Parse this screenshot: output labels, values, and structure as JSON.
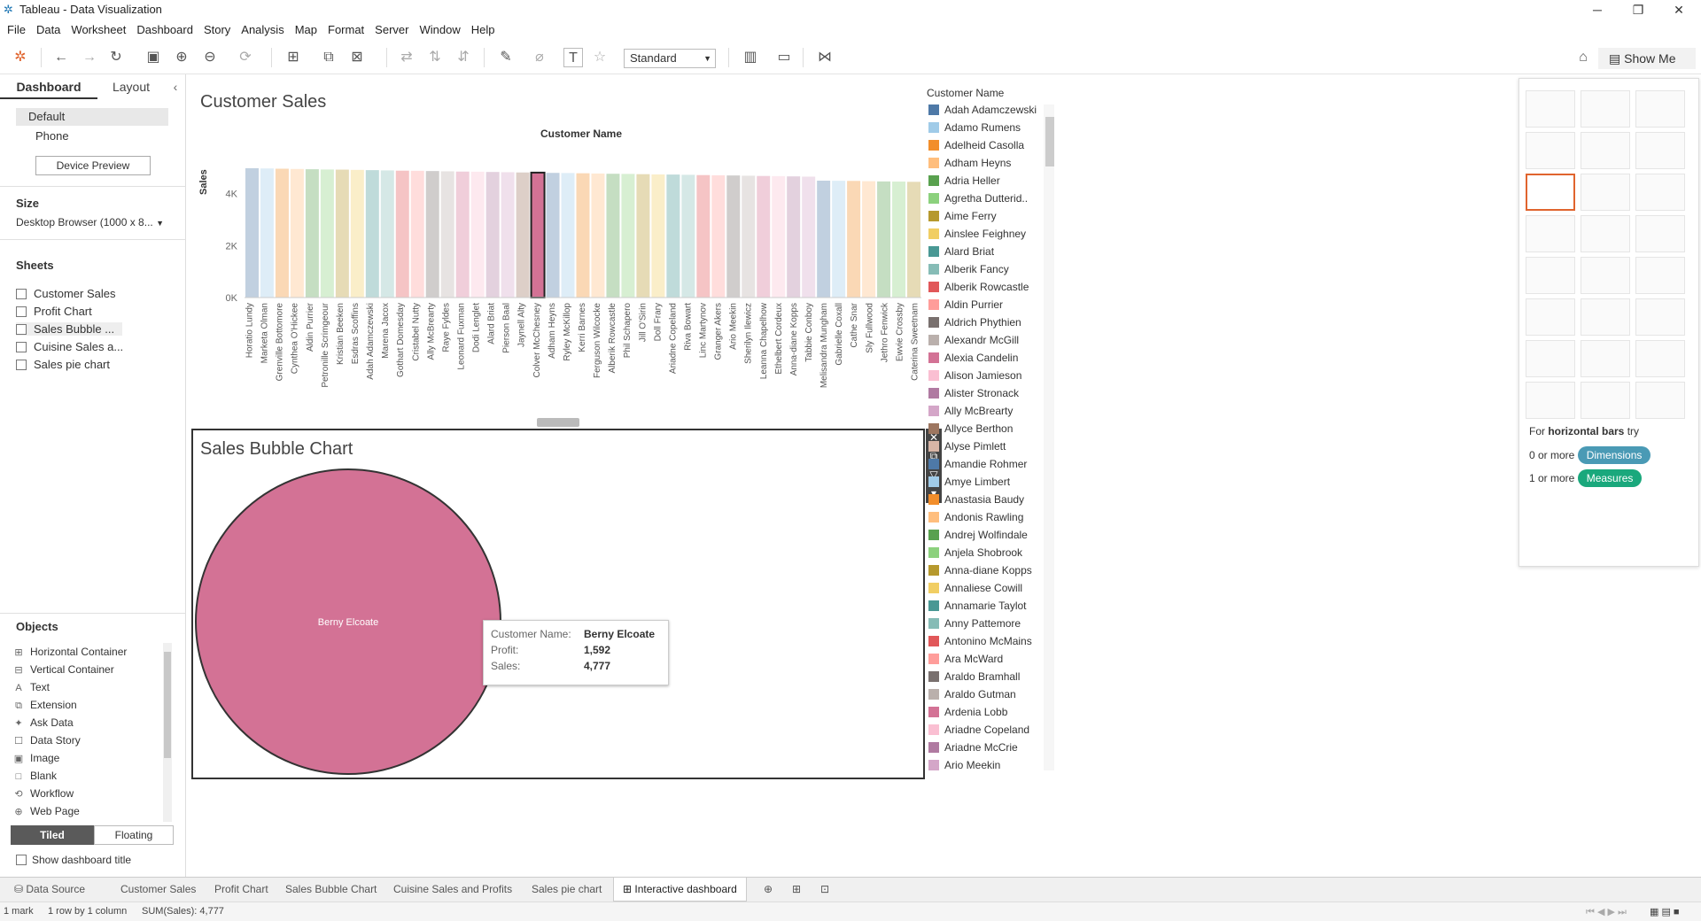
{
  "window": {
    "title": "Tableau - Data Visualization",
    "controls": [
      "─",
      "❐",
      "✕"
    ]
  },
  "menu": [
    "File",
    "Data",
    "Worksheet",
    "Dashboard",
    "Story",
    "Analysis",
    "Map",
    "Format",
    "Server",
    "Window",
    "Help"
  ],
  "toolbar": {
    "fit": "Standard",
    "show_me": "Show Me"
  },
  "left": {
    "tabs": {
      "dashboard": "Dashboard",
      "layout": "Layout"
    },
    "devices": [
      "Default",
      "Phone"
    ],
    "device_preview": "Device Preview",
    "size_title": "Size",
    "size_value": "Desktop Browser (1000 x 8...",
    "sheets_title": "Sheets",
    "sheets": [
      "Customer Sales",
      "Profit Chart",
      "Sales Bubble ...",
      "Cuisine Sales a...",
      "Sales pie chart"
    ],
    "objects_title": "Objects",
    "objects": [
      {
        "icon": "⊞",
        "label": "Horizontal Container"
      },
      {
        "icon": "⊟",
        "label": "Vertical Container"
      },
      {
        "icon": "A",
        "label": "Text"
      },
      {
        "icon": "⧉",
        "label": "Extension"
      },
      {
        "icon": "✦",
        "label": "Ask Data"
      },
      {
        "icon": "☐",
        "label": "Data Story"
      },
      {
        "icon": "▣",
        "label": "Image"
      },
      {
        "icon": "□",
        "label": "Blank"
      },
      {
        "icon": "⟲",
        "label": "Workflow"
      },
      {
        "icon": "⊕",
        "label": "Web Page"
      }
    ],
    "tiled": "Tiled",
    "floating": "Floating",
    "show_title": "Show dashboard title"
  },
  "customer_sales": {
    "title": "Customer Sales",
    "x_title": "Customer Name",
    "y_title": "Sales"
  },
  "bubble": {
    "title": "Sales Bubble Chart",
    "label": "Berny Elcoate"
  },
  "tooltip": {
    "rows": [
      {
        "k": "Customer Name:",
        "v": "Berny Elcoate"
      },
      {
        "k": "Profit:",
        "v": "1,592"
      },
      {
        "k": "Sales:",
        "v": "4,777"
      }
    ]
  },
  "legend": {
    "title": "Customer Name",
    "items": [
      {
        "name": "Adah Adamczewski",
        "color": "#4e79a7"
      },
      {
        "name": "Adamo Rumens",
        "color": "#a0cbe8"
      },
      {
        "name": "Adelheid Casolla",
        "color": "#f28e2b"
      },
      {
        "name": "Adham Heyns",
        "color": "#ffbe7d"
      },
      {
        "name": "Adria Heller",
        "color": "#59a14f"
      },
      {
        "name": "Agretha Dutterid..",
        "color": "#8cd17d"
      },
      {
        "name": "Aime Ferry",
        "color": "#b6992d"
      },
      {
        "name": "Ainslee Feighney",
        "color": "#f1ce63"
      },
      {
        "name": "Alard Briat",
        "color": "#499894"
      },
      {
        "name": "Alberik Fancy",
        "color": "#86bcb6"
      },
      {
        "name": "Alberik Rowcastle",
        "color": "#e15759"
      },
      {
        "name": "Aldin Purrier",
        "color": "#ff9d9a"
      },
      {
        "name": "Aldrich Phythien",
        "color": "#79706e"
      },
      {
        "name": "Alexandr McGill",
        "color": "#bab0ac"
      },
      {
        "name": "Alexia Candelin",
        "color": "#d37295"
      },
      {
        "name": "Alison Jamieson",
        "color": "#fabfd2"
      },
      {
        "name": "Alister Stronack",
        "color": "#b07aa1"
      },
      {
        "name": "Ally McBrearty",
        "color": "#d4a6c8"
      },
      {
        "name": "Allyce Berthon",
        "color": "#9d7660"
      },
      {
        "name": "Alyse Pimlett",
        "color": "#d7b5a6"
      },
      {
        "name": "Amandie Rohmer",
        "color": "#4e79a7"
      },
      {
        "name": "Amye Limbert",
        "color": "#a0cbe8"
      },
      {
        "name": "Anastasia Baudy",
        "color": "#f28e2b"
      },
      {
        "name": "Andonis Rawling",
        "color": "#ffbe7d"
      },
      {
        "name": "Andrej Wolfindale",
        "color": "#59a14f"
      },
      {
        "name": "Anjela Shobrook",
        "color": "#8cd17d"
      },
      {
        "name": "Anna-diane Kopps",
        "color": "#b6992d"
      },
      {
        "name": "Annaliese Cowill",
        "color": "#f1ce63"
      },
      {
        "name": "Annamarie Taylot",
        "color": "#499894"
      },
      {
        "name": "Anny Pattemore",
        "color": "#86bcb6"
      },
      {
        "name": "Antonino McMains",
        "color": "#e15759"
      },
      {
        "name": "Ara McWard",
        "color": "#ff9d9a"
      },
      {
        "name": "Araldo Bramhall",
        "color": "#79706e"
      },
      {
        "name": "Araldo Gutman",
        "color": "#bab0ac"
      },
      {
        "name": "Ardenia Lobb",
        "color": "#d37295"
      },
      {
        "name": "Ariadne Copeland",
        "color": "#fabfd2"
      },
      {
        "name": "Ariadne McCrie",
        "color": "#b07aa1"
      },
      {
        "name": "Ario Meekin",
        "color": "#d4a6c8"
      }
    ]
  },
  "show_me": {
    "hint_prefix": "For ",
    "hint_bold": "horizontal bars",
    "hint_suffix": " try",
    "dims_prefix": "0 or more",
    "dims": "Dimensions",
    "meas_prefix": "1 or more",
    "meas": "Measures"
  },
  "sheet_tabs": [
    "Data Source",
    "Customer Sales",
    "Profit Chart",
    "Sales Bubble Chart",
    "Cuisine Sales and Profits",
    "Sales pie chart",
    "Interactive dashboard"
  ],
  "status": {
    "marks": "1 mark",
    "rows": "1 row by 1 column",
    "sum": "SUM(Sales): 4,777"
  },
  "chart_data": {
    "type": "bar",
    "title": "Customer Sales",
    "xlabel": "Customer Name",
    "ylabel": "Sales",
    "ylim": [
      0,
      6000
    ],
    "yticks": [
      "0K",
      "2K",
      "4K"
    ],
    "highlighted": "Colver McChesney",
    "categories": [
      "Horatio Lundy",
      "Marketa Olman",
      "Grenville Bottomore",
      "Cynthea O'Hickee",
      "Aldin Purrier",
      "Petronille Scrimgeour",
      "Kristian Beeken",
      "Esdras Scoffins",
      "Adah Adamczewski",
      "Marena Jacox",
      "Gothart Domesday",
      "Cristabel Nutty",
      "Ally McBrearty",
      "Raye Fyldes",
      "Leonard Fuxman",
      "Dodi Lenglet",
      "Alard Briat",
      "Pierson Baal",
      "Jaynell Alty",
      "Colver McChesney",
      "Adham Heyns",
      "Ryley McKillop",
      "Kerri Barnes",
      "Ferguson Wilcocke",
      "Alberik Rowcastle",
      "Phil Schapero",
      "Jill O'Sirin",
      "Doll Frary",
      "Ariadne Copeland",
      "Riva Bowart",
      "Linc Martynov",
      "Granger Akers",
      "Ario Meekin",
      "Sherilyn Ilewicz",
      "Leanna Chapelhow",
      "Ethelbert Cordeux",
      "Anna-diane Kopps",
      "Tabbie Conboy",
      "Melisandra Mungham",
      "Gabrielle Coxall",
      "Cathe Snar",
      "Sly Fullwood",
      "Jethro Fenwick",
      "Ewvie Crossby",
      "Caterina Sweetnam"
    ],
    "values": [
      4980,
      4970,
      4960,
      4950,
      4940,
      4930,
      4925,
      4915,
      4905,
      4895,
      4885,
      4880,
      4870,
      4860,
      4850,
      4845,
      4835,
      4825,
      4815,
      4810,
      4800,
      4795,
      4785,
      4775,
      4765,
      4760,
      4750,
      4740,
      4735,
      4725,
      4715,
      4705,
      4700,
      4690,
      4680,
      4675,
      4665,
      4655,
      4500,
      4495,
      4490,
      4480,
      4470,
      4465,
      4455
    ]
  }
}
